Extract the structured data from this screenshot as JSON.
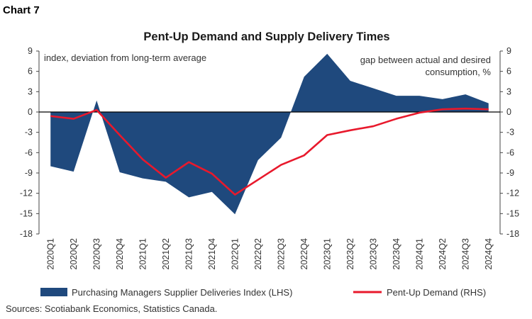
{
  "chart_number": "Chart 7",
  "source": "Sources: Scotiabank Economics, Statistics Canada.",
  "colors": {
    "area": "#1f497d",
    "line": "#e8192c",
    "axis": "#444444",
    "text": "#333333"
  },
  "chart_data": {
    "type": "area",
    "title": "Pent-Up Demand and Supply Delivery Times",
    "left_axis_label": "index, deviation from long-term average",
    "right_axis_label_line1": "gap between actual and desired",
    "right_axis_label_line2": "consumption, %",
    "ylim": [
      -18,
      9
    ],
    "yticks": [
      9,
      6,
      3,
      0,
      -3,
      -6,
      -9,
      -12,
      -15,
      -18
    ],
    "y2lim": [
      -18,
      9
    ],
    "y2ticks": [
      9,
      6,
      3,
      0,
      -3,
      -6,
      -9,
      -12,
      -15,
      -18
    ],
    "grid": false,
    "legend_position": "bottom",
    "categories": [
      "2020Q1",
      "2020Q2",
      "2020Q3",
      "2020Q4",
      "2021Q1",
      "2021Q2",
      "2021Q3",
      "2021Q4",
      "2022Q1",
      "2022Q2",
      "2022Q3",
      "2022Q4",
      "2023Q1",
      "2023Q2",
      "2023Q3",
      "2023Q4",
      "2024Q1",
      "2024Q2",
      "2024Q3",
      "2024Q4"
    ],
    "series": [
      {
        "name": "Purchasing Managers Supplier Deliveries Index (LHS)",
        "type": "area",
        "axis": "left",
        "values": [
          -8.0,
          -8.8,
          1.7,
          -8.9,
          -9.8,
          -10.3,
          -12.6,
          -11.8,
          -15.1,
          -7.1,
          -3.8,
          5.2,
          8.6,
          4.6,
          3.5,
          2.4,
          2.4,
          1.9,
          2.6,
          1.3
        ]
      },
      {
        "name": "Pent-Up Demand (RHS)",
        "type": "line",
        "axis": "right",
        "values": [
          -0.6,
          -1.0,
          0.3,
          -3.4,
          -7.0,
          -9.7,
          -7.4,
          -9.1,
          -12.2,
          -10.0,
          -7.8,
          -6.4,
          -3.4,
          -2.7,
          -2.1,
          -1.0,
          -0.1,
          0.4,
          0.5,
          0.4
        ]
      }
    ]
  }
}
